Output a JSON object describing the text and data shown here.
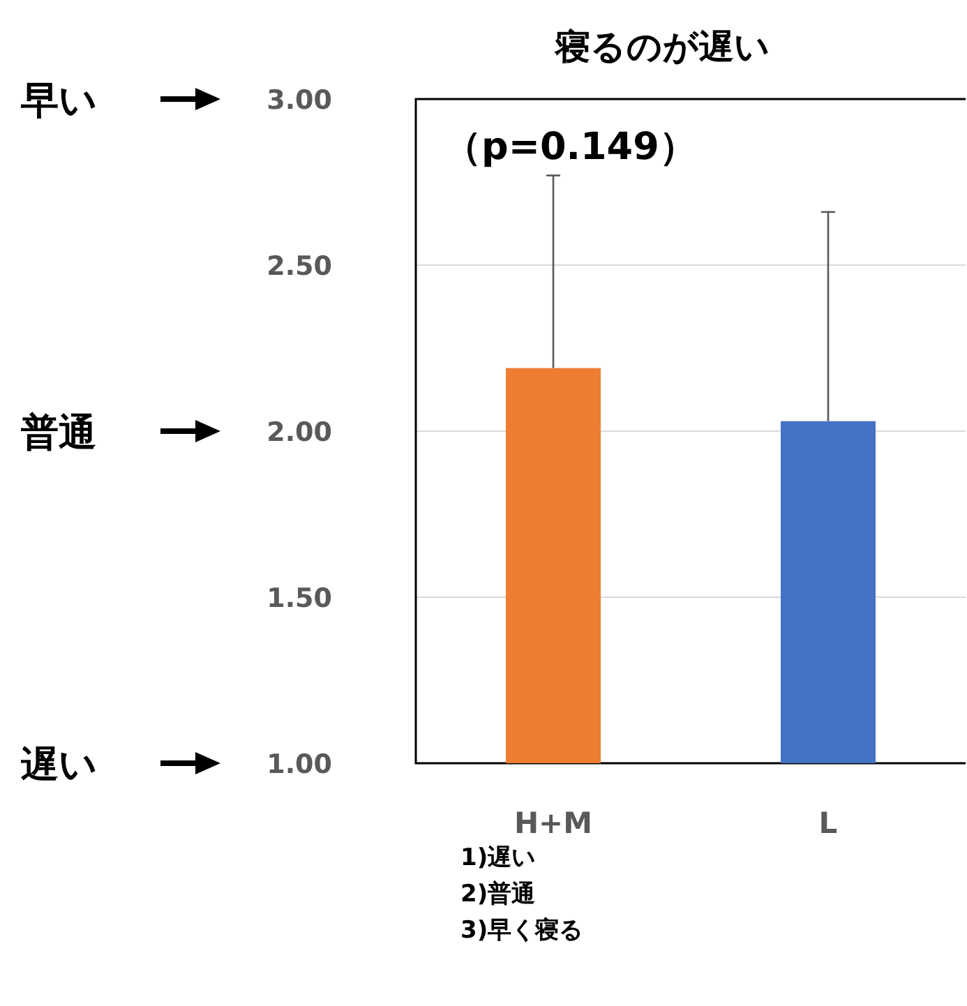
{
  "chart_data": {
    "type": "bar",
    "title": "寝るのが遅い",
    "categories": [
      "H+M",
      "L"
    ],
    "values": [
      2.19,
      2.03
    ],
    "colors": [
      "#ed7d31",
      "#4472c4"
    ],
    "errors": [
      [
        2.19,
        2.77
      ],
      [
        2.03,
        2.66
      ]
    ],
    "ylim": [
      1,
      3
    ],
    "yticks": [
      {
        "value": 1,
        "label": "1.00"
      },
      {
        "value": 1.5,
        "label": "1.50"
      },
      {
        "value": 2,
        "label": "2.00"
      },
      {
        "value": 2.5,
        "label": "2.50"
      },
      {
        "value": 3,
        "label": "3.00"
      }
    ],
    "grid": "y",
    "annotations": [
      "（p=0.149）",
      "1)遅い",
      "2)普通",
      "3)早く寝る",
      "早い",
      "普通",
      "遅い"
    ]
  }
}
